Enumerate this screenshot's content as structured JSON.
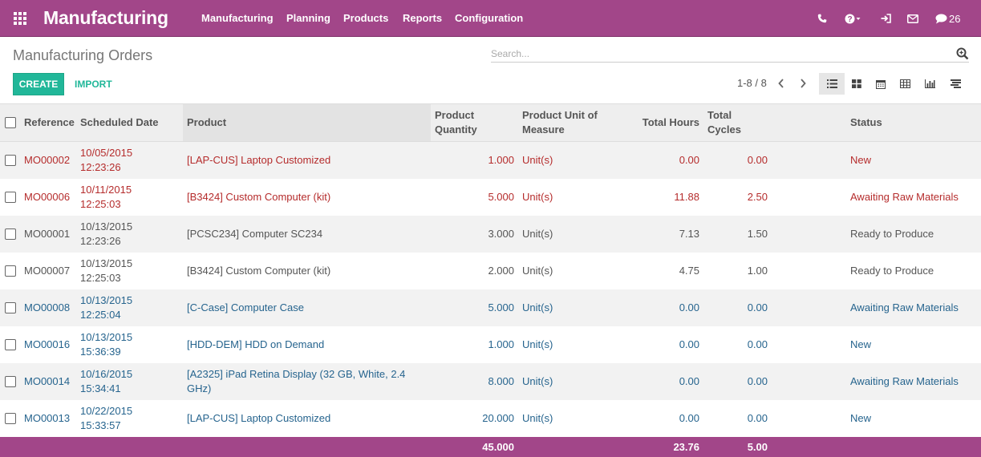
{
  "app": {
    "title": "Manufacturing",
    "menu": [
      "Manufacturing",
      "Planning",
      "Products",
      "Reports",
      "Configuration"
    ],
    "messages_count": "26",
    "theme_color": "#a24689",
    "accent_color": "#21b799",
    "icons": [
      "apps-grid-icon",
      "phone-icon",
      "help-icon",
      "login-icon",
      "envelope-icon",
      "chat-icon"
    ]
  },
  "control": {
    "breadcrumb": "Manufacturing Orders",
    "search_placeholder": "Search...",
    "create_label": "CREATE",
    "import_label": "IMPORT",
    "pager": "1-8 / 8",
    "views": [
      "list",
      "kanban",
      "calendar",
      "pivot",
      "graph",
      "gantt"
    ],
    "active_view": "list"
  },
  "table": {
    "columns": [
      "Reference",
      "Scheduled Date",
      "Product",
      "Product Quantity",
      "Product Unit of Measure",
      "Total Hours",
      "Total Cycles",
      "Status"
    ],
    "rows": [
      {
        "ref": "MO00002",
        "date": "10/05/2015",
        "time": "12:23:26",
        "product": "[LAP-CUS] Laptop Customized",
        "qty": "1.000",
        "uom": "Unit(s)",
        "hours": "0.00",
        "cycles": "0.00",
        "status": "New",
        "color": "red"
      },
      {
        "ref": "MO00006",
        "date": "10/11/2015",
        "time": "12:25:03",
        "product": "[B3424] Custom Computer (kit)",
        "qty": "5.000",
        "uom": "Unit(s)",
        "hours": "11.88",
        "cycles": "2.50",
        "status": "Awaiting Raw Materials",
        "color": "red"
      },
      {
        "ref": "MO00001",
        "date": "10/13/2015",
        "time": "12:23:26",
        "product": "[PCSC234] Computer SC234",
        "qty": "3.000",
        "uom": "Unit(s)",
        "hours": "7.13",
        "cycles": "1.50",
        "status": "Ready to Produce",
        "color": "dark"
      },
      {
        "ref": "MO00007",
        "date": "10/13/2015",
        "time": "12:25:03",
        "product": "[B3424] Custom Computer (kit)",
        "qty": "2.000",
        "uom": "Unit(s)",
        "hours": "4.75",
        "cycles": "1.00",
        "status": "Ready to Produce",
        "color": "dark"
      },
      {
        "ref": "MO00008",
        "date": "10/13/2015",
        "time": "12:25:04",
        "product": "[C-Case] Computer Case",
        "qty": "5.000",
        "uom": "Unit(s)",
        "hours": "0.00",
        "cycles": "0.00",
        "status": "Awaiting Raw Materials",
        "color": "blue"
      },
      {
        "ref": "MO00016",
        "date": "10/13/2015",
        "time": "15:36:39",
        "product": "[HDD-DEM] HDD on Demand",
        "qty": "1.000",
        "uom": "Unit(s)",
        "hours": "0.00",
        "cycles": "0.00",
        "status": "New",
        "color": "blue"
      },
      {
        "ref": "MO00014",
        "date": "10/16/2015",
        "time": "15:34:41",
        "product": "[A2325] iPad Retina Display (32 GB, White, 2.4 GHz)",
        "qty": "8.000",
        "uom": "Unit(s)",
        "hours": "0.00",
        "cycles": "0.00",
        "status": "Awaiting Raw Materials",
        "color": "blue"
      },
      {
        "ref": "MO00013",
        "date": "10/22/2015",
        "time": "15:33:57",
        "product": "[LAP-CUS] Laptop Customized",
        "qty": "20.000",
        "uom": "Unit(s)",
        "hours": "0.00",
        "cycles": "0.00",
        "status": "New",
        "color": "blue"
      }
    ],
    "totals": {
      "qty": "45.000",
      "hours": "23.76",
      "cycles": "5.00"
    }
  }
}
